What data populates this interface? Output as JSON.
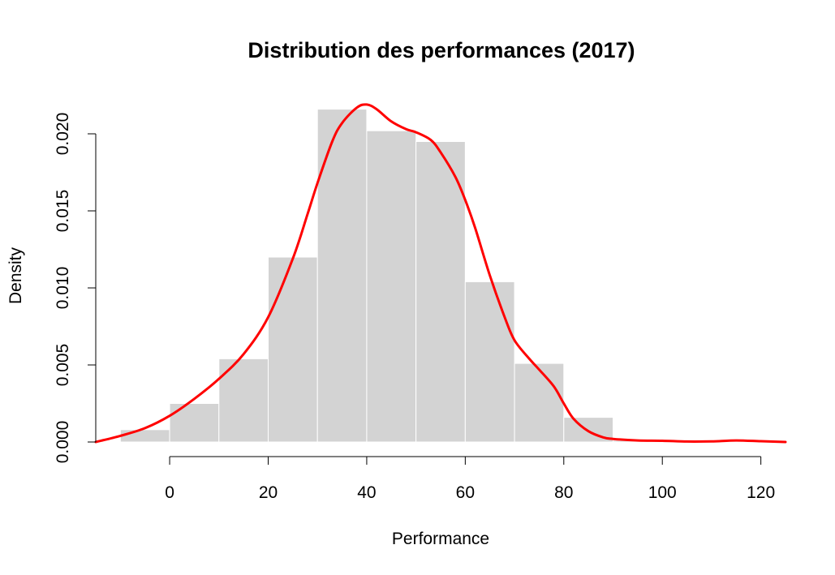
{
  "chart_data": {
    "type": "histogram",
    "title": "Distribution des performances (2017)",
    "xlabel": "Performance",
    "ylabel": "Density",
    "xlim": [
      -15,
      125
    ],
    "ylim": [
      0,
      0.022
    ],
    "x_ticks": [
      0,
      20,
      40,
      60,
      80,
      100,
      120
    ],
    "x_tick_labels": [
      "0",
      "20",
      "40",
      "60",
      "80",
      "100",
      "120"
    ],
    "y_ticks": [
      0,
      0.005,
      0.01,
      0.015,
      0.02
    ],
    "y_tick_labels": [
      "0.000",
      "0.005",
      "0.010",
      "0.015",
      "0.020"
    ],
    "grid": false,
    "bins": [
      {
        "x0": -10,
        "x1": 0,
        "density": 0.0008
      },
      {
        "x0": 0,
        "x1": 10,
        "density": 0.0025
      },
      {
        "x0": 10,
        "x1": 20,
        "density": 0.0054
      },
      {
        "x0": 20,
        "x1": 30,
        "density": 0.012
      },
      {
        "x0": 30,
        "x1": 40,
        "density": 0.0216
      },
      {
        "x0": 40,
        "x1": 50,
        "density": 0.0202
      },
      {
        "x0": 50,
        "x1": 60,
        "density": 0.0195
      },
      {
        "x0": 60,
        "x1": 70,
        "density": 0.0104
      },
      {
        "x0": 70,
        "x1": 80,
        "density": 0.0051
      },
      {
        "x0": 80,
        "x1": 90,
        "density": 0.0016
      },
      {
        "x0": 90,
        "x1": 100,
        "density": 0.0001
      },
      {
        "x0": 100,
        "x1": 110,
        "density": 0.0
      },
      {
        "x0": 110,
        "x1": 120,
        "density": 0.0001
      }
    ],
    "density_curve": {
      "x": [
        -15,
        -10,
        -5,
        0,
        5,
        10,
        15,
        20,
        25,
        28,
        30,
        33,
        35,
        38,
        40,
        42,
        45,
        48,
        50,
        53,
        55,
        58,
        60,
        62,
        65,
        68,
        70,
        73,
        75,
        78,
        80,
        82,
        85,
        88,
        90,
        95,
        100,
        105,
        110,
        115,
        120,
        125
      ],
      "y": [
        0.0,
        0.0004,
        0.0009,
        0.0017,
        0.0028,
        0.0041,
        0.0057,
        0.0081,
        0.0119,
        0.0148,
        0.0168,
        0.0195,
        0.0207,
        0.0217,
        0.0219,
        0.0216,
        0.0208,
        0.0203,
        0.0201,
        0.0196,
        0.0188,
        0.0172,
        0.0157,
        0.0139,
        0.0108,
        0.0081,
        0.0066,
        0.0054,
        0.0047,
        0.0036,
        0.0025,
        0.0015,
        0.0007,
        0.0003,
        0.0002,
        0.0001,
        8e-05,
        3e-05,
        4e-05,
        0.0001,
        5e-05,
        0.0
      ]
    },
    "colors": {
      "bar_fill": "#d3d3d3",
      "bar_border": "#ffffff",
      "density_line": "#ff0000"
    }
  }
}
